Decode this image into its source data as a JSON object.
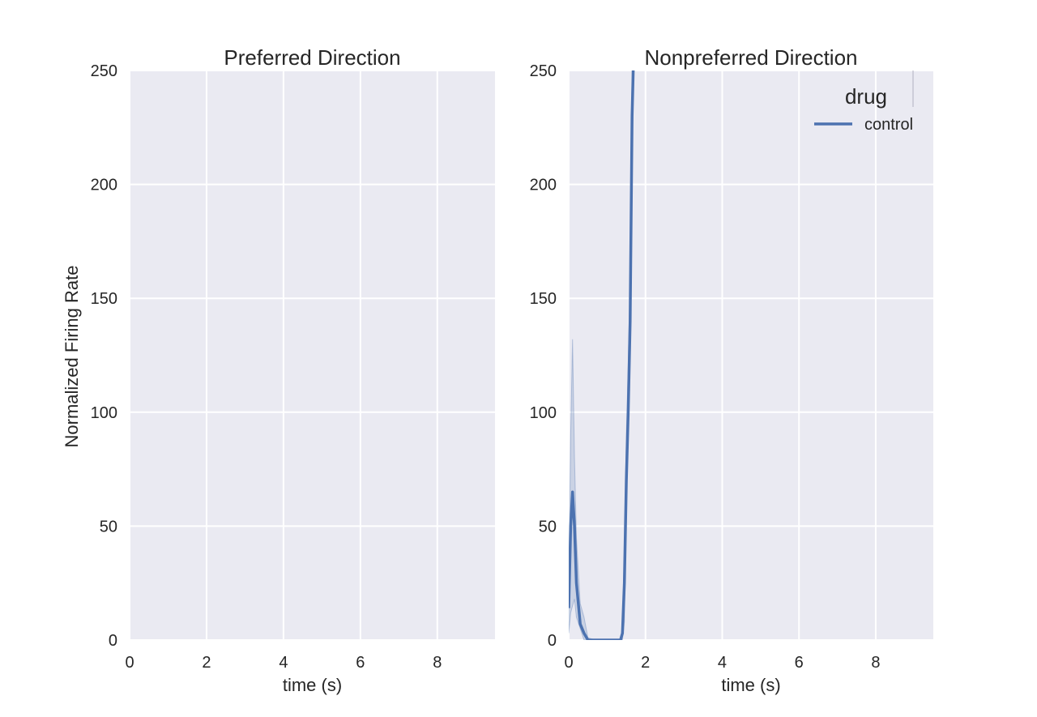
{
  "chart_data": {
    "type": "line",
    "ylabel": "Normalized Firing Rate",
    "shared_y": true,
    "ylim": [
      0,
      250
    ],
    "xlim": [
      0,
      9.5
    ],
    "grid": true,
    "colors": {
      "plot_bg": "#eaeaf2",
      "grid": "#ffffff",
      "series": "#4c72b0"
    },
    "legend": {
      "title": "drug",
      "entries": [
        "control"
      ],
      "placement": "top-right"
    },
    "panels": [
      {
        "title": "Preferred Direction",
        "xlabel": "time (s)",
        "xticks": [
          0,
          2,
          4,
          6,
          8
        ],
        "yticks": [
          0,
          50,
          100,
          150,
          200,
          250
        ],
        "series": []
      },
      {
        "title": "Nonpreferred Direction",
        "xlabel": "time (s)",
        "xticks": [
          0,
          2,
          4,
          6,
          8
        ],
        "yticks": [
          0,
          50,
          100,
          150,
          200,
          250
        ],
        "series": [
          {
            "name": "control",
            "x": [
              0.0,
              0.05,
              0.1,
              0.15,
              0.2,
              0.3,
              0.4,
              0.5,
              0.7,
              1.0,
              1.2,
              1.35,
              1.4,
              1.45,
              1.5,
              1.55,
              1.6,
              1.65,
              1.68
            ],
            "y": [
              14,
              50,
              65,
              50,
              25,
              7,
              3,
              0,
              0,
              0,
              0,
              0,
              3,
              25,
              70,
              100,
              140,
              230,
              250
            ],
            "ci_low": [
              3,
              12,
              15,
              18,
              10,
              5,
              0,
              0,
              0,
              0,
              0,
              0,
              0,
              8,
              60,
              90,
              130,
              210,
              240
            ],
            "ci_high": [
              25,
              90,
              132,
              80,
              45,
              16,
              10,
              1,
              0,
              0,
              0,
              0,
              6,
              40,
              90,
              120,
              160,
              250,
              250
            ]
          }
        ]
      }
    ]
  }
}
